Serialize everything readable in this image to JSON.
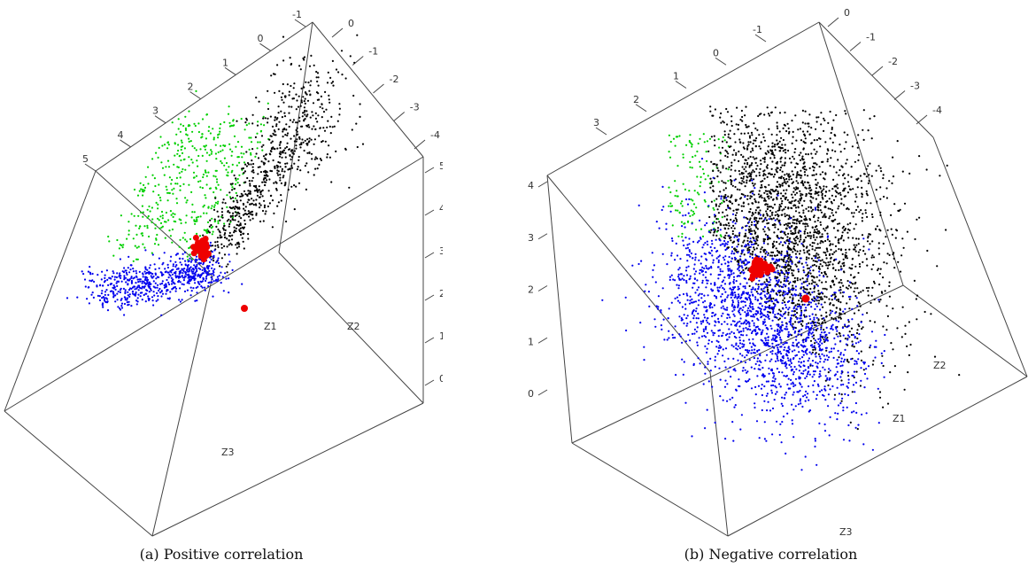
{
  "chart_data": [
    {
      "type": "scatter",
      "caption": "(a) Positive correlation",
      "axis_labels": {
        "z1": "Z1",
        "z2": "Z2",
        "z3": "Z3"
      },
      "tick_labels": {
        "top_left": [
          "5",
          "4",
          "3",
          "2",
          "1",
          "0",
          "-1"
        ],
        "top_right": [
          "0",
          "-1",
          "-2",
          "-3",
          "-4"
        ],
        "right": [
          "5",
          "4",
          "3",
          "2",
          "1",
          "0"
        ]
      },
      "series": [
        {
          "color": "#00d000",
          "count": 450
        },
        {
          "color": "#000000",
          "count": 700
        },
        {
          "color": "#0000ee",
          "count": 650
        },
        {
          "color": "#ee0000",
          "count": 40
        }
      ],
      "grid": false
    },
    {
      "type": "scatter",
      "caption": "(b) Negative correlation",
      "axis_labels": {
        "z1": "Z1",
        "z2": "Z2",
        "z3": "Z3"
      },
      "tick_labels": {
        "top_left": [
          "3",
          "2",
          "1",
          "0",
          "-1"
        ],
        "top_right": [
          "0",
          "-1",
          "-2",
          "-3",
          "-4"
        ],
        "left": [
          "4",
          "3",
          "2",
          "1",
          "0"
        ]
      },
      "series": [
        {
          "color": "#00d000",
          "count": 120
        },
        {
          "color": "#000000",
          "count": 2600
        },
        {
          "color": "#0000ee",
          "count": 1800
        },
        {
          "color": "#ee0000",
          "count": 40
        }
      ],
      "grid": false
    }
  ]
}
